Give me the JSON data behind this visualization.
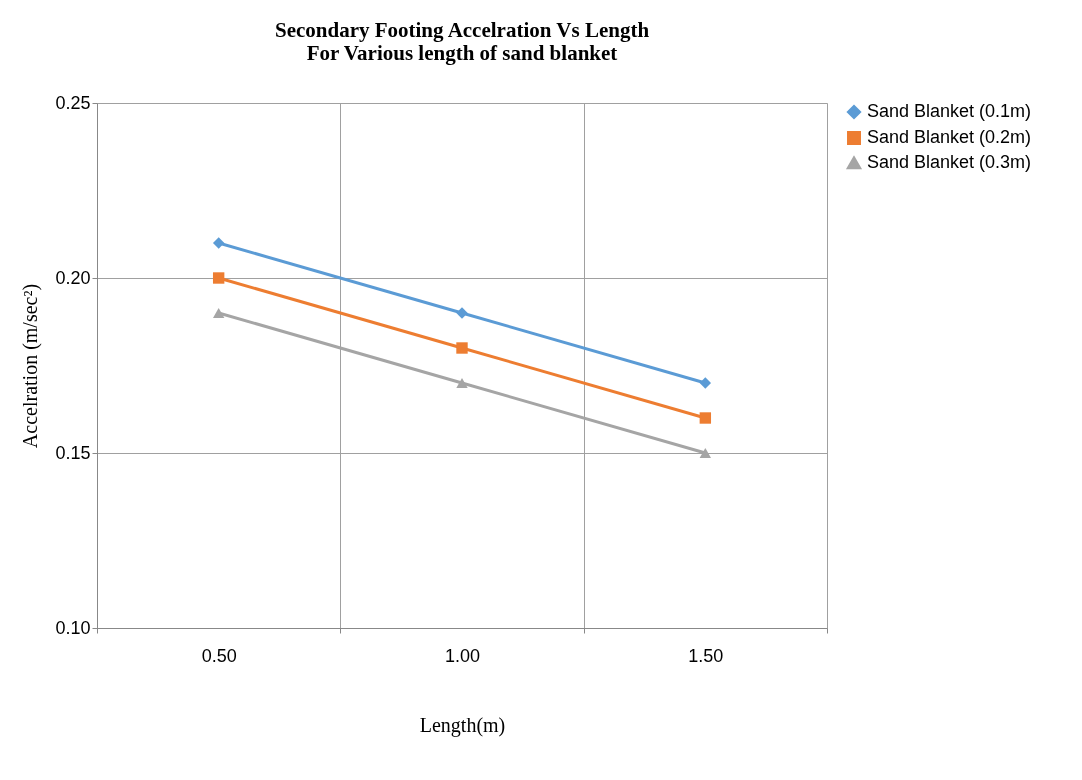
{
  "chart_data": {
    "type": "line",
    "title": [
      "Secondary Footing Accelration Vs Length",
      "For Various length of sand blanket"
    ],
    "xlabel": "Length(m)",
    "ylabel": "Accelration (m/sec²)",
    "categories": [
      "0.50",
      "1.00",
      "1.50"
    ],
    "series": [
      {
        "name": "Sand Blanket (0.1m)",
        "color": "#5b9bd5",
        "marker": "diamond",
        "values": [
          0.21,
          0.19,
          0.17
        ]
      },
      {
        "name": "Sand Blanket (0.2m)",
        "color": "#ed7d31",
        "marker": "square",
        "values": [
          0.2,
          0.18,
          0.16
        ]
      },
      {
        "name": "Sand Blanket (0.3m)",
        "color": "#a5a5a5",
        "marker": "triangle",
        "values": [
          0.19,
          0.17,
          0.15
        ]
      }
    ],
    "ylim": [
      0.1,
      0.25
    ],
    "yticks": [
      {
        "value": 0.1,
        "label": "0.10"
      },
      0.15,
      {
        "value": 0.2,
        "label": "0.20"
      },
      0.25
    ],
    "grid": true,
    "legend": "right",
    "line_style": "solid"
  }
}
